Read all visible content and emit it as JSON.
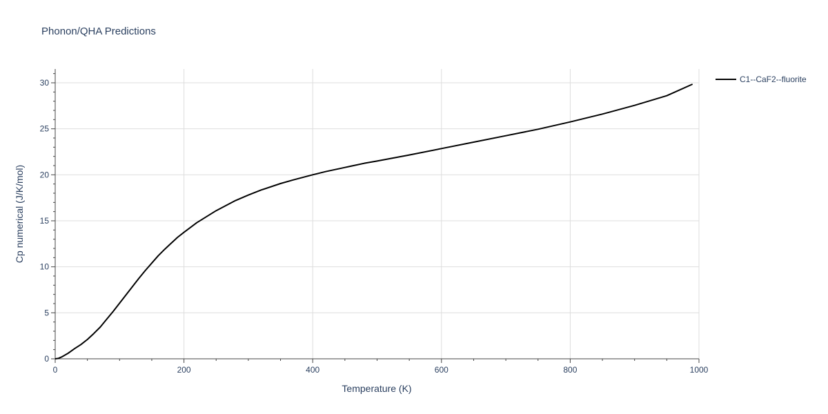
{
  "chart_data": {
    "type": "line",
    "title": "Phonon/QHA Predictions",
    "xlabel": "Temperature (K)",
    "ylabel": "Cp numerical (J/K/mol)",
    "xlim": [
      0,
      1000
    ],
    "ylim": [
      0,
      31.5
    ],
    "xticks": [
      0,
      200,
      400,
      600,
      800,
      1000
    ],
    "xtick_labels": [
      "0",
      "200",
      "400",
      "600",
      "800",
      "1000"
    ],
    "yticks": [
      0,
      5,
      10,
      15,
      20,
      25,
      30
    ],
    "ytick_labels": [
      "0",
      "5",
      "10",
      "15",
      "20",
      "25",
      "30"
    ],
    "grid": true,
    "legend_position": "top-right, outside plot",
    "series": [
      {
        "name": "C1--CaF2--fluorite",
        "color": "#000000",
        "x": [
          0,
          5,
          10,
          20,
          30,
          40,
          50,
          60,
          70,
          80,
          90,
          100,
          110,
          120,
          130,
          140,
          150,
          160,
          170,
          180,
          190,
          200,
          220,
          250,
          280,
          300,
          320,
          350,
          370,
          400,
          420,
          450,
          480,
          500,
          550,
          600,
          650,
          700,
          750,
          800,
          850,
          900,
          950,
          990
        ],
        "y": [
          0,
          0.05,
          0.2,
          0.6,
          1.1,
          1.55,
          2.1,
          2.75,
          3.45,
          4.3,
          5.15,
          6.05,
          6.95,
          7.85,
          8.75,
          9.6,
          10.4,
          11.2,
          11.9,
          12.55,
          13.2,
          13.75,
          14.8,
          16.1,
          17.2,
          17.8,
          18.35,
          19.05,
          19.45,
          20.0,
          20.35,
          20.8,
          21.25,
          21.5,
          22.15,
          22.85,
          23.55,
          24.25,
          24.95,
          25.75,
          26.6,
          27.55,
          28.6,
          29.85
        ]
      }
    ]
  }
}
